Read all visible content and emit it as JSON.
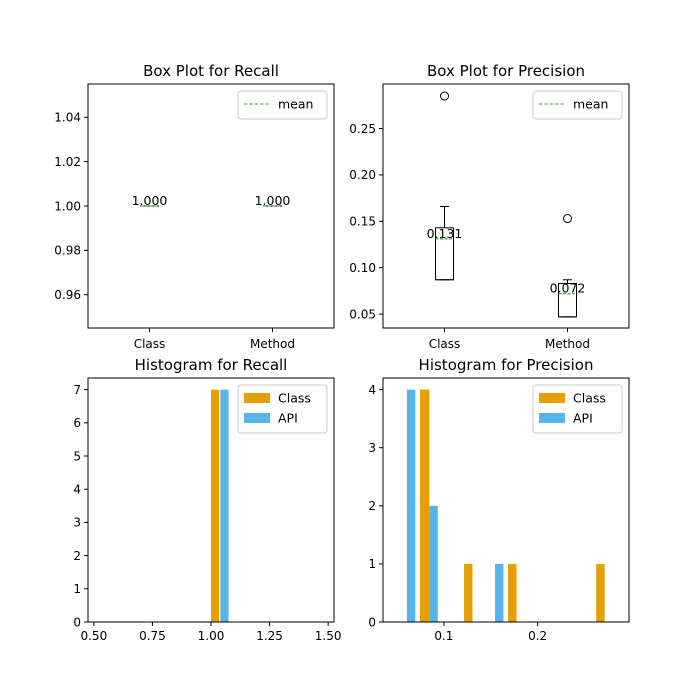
{
  "colors": {
    "class": "#e69f00",
    "api": "#56b4e9",
    "mean": "#2ca02c",
    "box": "#000000"
  },
  "chart_data": [
    {
      "type": "box",
      "title": "Box Plot for Recall",
      "categories": [
        "Class",
        "Method"
      ],
      "ylim": [
        0.945,
        1.055
      ],
      "yticks": [
        0.96,
        0.98,
        1.0,
        1.02,
        1.04
      ],
      "ytick_labels": [
        "0.96",
        "0.98",
        "1.00",
        "1.02",
        "1.04"
      ],
      "legend": {
        "entries": [
          "mean"
        ],
        "placement": "upper right"
      },
      "boxes": [
        {
          "category": "Class",
          "whislo": 1.0,
          "q1": 1.0,
          "med": 1.0,
          "q3": 1.0,
          "whishi": 1.0,
          "mean": 1.0,
          "mean_label": "1.000",
          "fliers": []
        },
        {
          "category": "Method",
          "whislo": 1.0,
          "q1": 1.0,
          "med": 1.0,
          "q3": 1.0,
          "whishi": 1.0,
          "mean": 1.0,
          "mean_label": "1.000",
          "fliers": []
        }
      ]
    },
    {
      "type": "box",
      "title": "Box Plot for Precision",
      "categories": [
        "Class",
        "Method"
      ],
      "ylim": [
        0.035,
        0.298
      ],
      "yticks": [
        0.05,
        0.1,
        0.15,
        0.2,
        0.25
      ],
      "ytick_labels": [
        "0.05",
        "0.10",
        "0.15",
        "0.20",
        "0.25"
      ],
      "legend": {
        "entries": [
          "mean"
        ],
        "placement": "upper right"
      },
      "boxes": [
        {
          "category": "Class",
          "whislo": 0.087,
          "q1": 0.087,
          "med": 0.087,
          "q3": 0.143,
          "whishi": 0.166,
          "mean": 0.131,
          "mean_label": "0.131",
          "fliers": [
            0.285
          ]
        },
        {
          "category": "Method",
          "whislo": 0.047,
          "q1": 0.047,
          "med": 0.047,
          "q3": 0.083,
          "whishi": 0.087,
          "mean": 0.072,
          "mean_label": "0.072",
          "fliers": [
            0.153
          ]
        }
      ]
    },
    {
      "type": "bar",
      "title": "Histogram for Recall",
      "xlim": [
        0.475,
        1.525
      ],
      "ylim": [
        0,
        7.35
      ],
      "xticks": [
        0.5,
        0.75,
        1.0,
        1.25,
        1.5
      ],
      "xtick_labels": [
        "0.50",
        "0.75",
        "1.00",
        "1.25",
        "1.50"
      ],
      "yticks": [
        0,
        1,
        2,
        3,
        4,
        5,
        6,
        7
      ],
      "ytick_labels": [
        "0",
        "1",
        "2",
        "3",
        "4",
        "5",
        "6",
        "7"
      ],
      "legend": {
        "entries": [
          "Class",
          "API"
        ],
        "placement": "upper right"
      },
      "series": [
        {
          "name": "Class",
          "color_key": "class",
          "bars": [
            {
              "x0": 1.0,
              "x1": 1.035,
              "value": 7
            }
          ]
        },
        {
          "name": "API",
          "color_key": "api",
          "bars": [
            {
              "x0": 1.04,
              "x1": 1.075,
              "value": 7
            }
          ]
        }
      ]
    },
    {
      "type": "bar",
      "title": "Histogram for Precision",
      "xlim": [
        0.035,
        0.2975
      ],
      "ylim": [
        0,
        4.2
      ],
      "xticks": [
        0.1,
        0.2
      ],
      "xtick_labels": [
        "0.1",
        "0.2"
      ],
      "yticks": [
        0,
        1,
        2,
        3,
        4
      ],
      "ytick_labels": [
        "0",
        "1",
        "2",
        "3",
        "4"
      ],
      "legend": {
        "entries": [
          "Class",
          "API"
        ],
        "placement": "upper right"
      },
      "series": [
        {
          "name": "Class",
          "color_key": "class",
          "bars": [
            {
              "x0": 0.0745,
              "x1": 0.0845,
              "value": 4
            },
            {
              "x0": 0.1215,
              "x1": 0.1305,
              "value": 1
            },
            {
              "x0": 0.1685,
              "x1": 0.1775,
              "value": 1
            },
            {
              "x0": 0.2625,
              "x1": 0.2715,
              "value": 1
            }
          ]
        },
        {
          "name": "API",
          "color_key": "api",
          "bars": [
            {
              "x0": 0.0605,
              "x1": 0.0695,
              "value": 4
            },
            {
              "x0": 0.0845,
              "x1": 0.0935,
              "value": 2
            },
            {
              "x0": 0.1545,
              "x1": 0.1635,
              "value": 1
            }
          ]
        }
      ]
    }
  ]
}
